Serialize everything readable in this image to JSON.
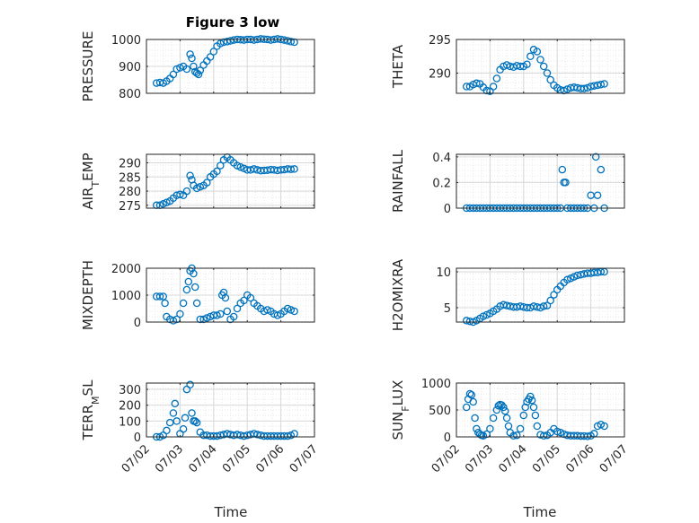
{
  "figure": {
    "title": "Figure 3 low",
    "xlabel": "Time"
  },
  "colors": {
    "marker": "#0072BD",
    "axis": "#262626",
    "grid": "#d9d9d9",
    "minorgrid": "#e8e8e8"
  },
  "chart_data": [
    {
      "type": "scatter",
      "ylabel": "PRESSURE",
      "xlim": [
        2.0,
        7.0
      ],
      "ylim": [
        800,
        1000
      ],
      "yticks": [
        800,
        900,
        1000
      ],
      "yticklabels": [
        "800",
        "900",
        "1000"
      ],
      "x": [
        2.3,
        2.4,
        2.5,
        2.6,
        2.7,
        2.8,
        2.9,
        3.0,
        3.1,
        3.2,
        3.3,
        3.35,
        3.4,
        3.45,
        3.5,
        3.55,
        3.6,
        3.7,
        3.8,
        3.9,
        4.0,
        4.1,
        4.2,
        4.3,
        4.4,
        4.5,
        4.6,
        4.7,
        4.8,
        4.9,
        5.0,
        5.1,
        5.2,
        5.3,
        5.4,
        5.5,
        5.6,
        5.7,
        5.8,
        5.9,
        6.0,
        6.1,
        6.2,
        6.3,
        6.4
      ],
      "y": [
        838,
        840,
        838,
        845,
        855,
        870,
        890,
        895,
        900,
        890,
        945,
        930,
        900,
        880,
        875,
        870,
        885,
        905,
        920,
        935,
        955,
        975,
        985,
        990,
        992,
        995,
        998,
        1000,
        999,
        998,
        1000,
        1000,
        998,
        1000,
        1002,
        1001,
        1000,
        998,
        1000,
        1002,
        1000,
        998,
        995,
        992,
        990
      ]
    },
    {
      "type": "scatter",
      "ylabel": "THETA",
      "xlim": [
        2.0,
        7.0
      ],
      "ylim": [
        287,
        295
      ],
      "yticks": [
        290,
        295
      ],
      "yticklabels": [
        "290",
        "295"
      ],
      "x": [
        2.3,
        2.4,
        2.5,
        2.6,
        2.7,
        2.8,
        2.9,
        3.0,
        3.1,
        3.2,
        3.3,
        3.4,
        3.5,
        3.6,
        3.7,
        3.8,
        3.9,
        4.0,
        4.1,
        4.2,
        4.3,
        4.4,
        4.5,
        4.6,
        4.7,
        4.8,
        4.9,
        5.0,
        5.1,
        5.2,
        5.3,
        5.4,
        5.5,
        5.6,
        5.7,
        5.8,
        5.9,
        6.0,
        6.1,
        6.2,
        6.3,
        6.4
      ],
      "y": [
        288,
        288,
        288.3,
        288.5,
        288.4,
        287.9,
        287.4,
        287.3,
        288,
        289.2,
        290.5,
        291,
        291.2,
        291,
        290.9,
        291.1,
        291,
        291,
        291.3,
        292.5,
        293.5,
        293.2,
        292,
        291,
        290,
        289,
        288.2,
        287.8,
        287.5,
        287.4,
        287.6,
        287.8,
        287.9,
        287.8,
        287.7,
        287.7,
        287.8,
        288,
        288.1,
        288.2,
        288.3,
        288.4
      ]
    },
    {
      "type": "scatter",
      "ylabel": "AIR_TEMP",
      "xlim": [
        2.0,
        7.0
      ],
      "ylim": [
        274,
        293
      ],
      "yticks": [
        275,
        280,
        285,
        290
      ],
      "yticklabels": [
        "275",
        "280",
        "285",
        "290"
      ],
      "x": [
        2.3,
        2.4,
        2.5,
        2.6,
        2.7,
        2.8,
        2.9,
        3.0,
        3.1,
        3.2,
        3.3,
        3.35,
        3.4,
        3.5,
        3.6,
        3.7,
        3.8,
        3.9,
        4.0,
        4.1,
        4.2,
        4.3,
        4.4,
        4.5,
        4.6,
        4.7,
        4.8,
        4.9,
        5.0,
        5.1,
        5.2,
        5.3,
        5.4,
        5.5,
        5.6,
        5.7,
        5.8,
        5.9,
        6.0,
        6.1,
        6.2,
        6.3,
        6.4
      ],
      "y": [
        275,
        275,
        275.5,
        276,
        276.5,
        277.5,
        278.5,
        278.8,
        278.5,
        280,
        285.5,
        284,
        282,
        281,
        281.5,
        282,
        283,
        285,
        286,
        287,
        289,
        291,
        292,
        291,
        290,
        289,
        288.5,
        288,
        287.5,
        287.5,
        287.8,
        287.5,
        287.2,
        287.3,
        287.4,
        287.6,
        287.5,
        287.3,
        287.5,
        287.6,
        287.8,
        287.7,
        287.8
      ]
    },
    {
      "type": "scatter",
      "ylabel": "RAINFALL",
      "xlim": [
        2.0,
        7.0
      ],
      "ylim": [
        0,
        0.42
      ],
      "yticks": [
        0,
        0.2,
        0.4
      ],
      "yticklabels": [
        "0",
        "0.2",
        "0.4"
      ],
      "x": [
        2.3,
        2.4,
        2.5,
        2.6,
        2.7,
        2.8,
        2.9,
        3.0,
        3.1,
        3.2,
        3.3,
        3.4,
        3.5,
        3.6,
        3.7,
        3.8,
        3.9,
        4.0,
        4.1,
        4.2,
        4.3,
        4.4,
        4.5,
        4.6,
        4.7,
        4.8,
        4.9,
        5.0,
        5.1,
        5.15,
        5.2,
        5.25,
        5.3,
        5.4,
        5.5,
        5.6,
        5.7,
        5.8,
        5.9,
        6.0,
        6.1,
        6.15,
        6.2,
        6.3,
        6.4
      ],
      "y": [
        0,
        0,
        0,
        0,
        0,
        0,
        0,
        0,
        0,
        0,
        0,
        0,
        0,
        0,
        0,
        0,
        0,
        0,
        0,
        0,
        0,
        0,
        0,
        0,
        0,
        0,
        0,
        0,
        0,
        0.3,
        0.2,
        0.2,
        0,
        0,
        0,
        0,
        0,
        0,
        0,
        0.1,
        0,
        0.4,
        0.1,
        0.3,
        0
      ]
    },
    {
      "type": "scatter",
      "ylabel": "MIXDEPTH",
      "xlim": [
        2.0,
        7.0
      ],
      "ylim": [
        0,
        2000
      ],
      "yticks": [
        0,
        1000,
        2000
      ],
      "yticklabels": [
        "0",
        "1000",
        "2000"
      ],
      "x": [
        2.3,
        2.4,
        2.5,
        2.55,
        2.6,
        2.7,
        2.8,
        2.9,
        3.0,
        3.1,
        3.2,
        3.25,
        3.3,
        3.35,
        3.4,
        3.45,
        3.5,
        3.6,
        3.7,
        3.8,
        3.9,
        4.0,
        4.1,
        4.2,
        4.25,
        4.3,
        4.35,
        4.4,
        4.5,
        4.6,
        4.7,
        4.8,
        4.9,
        5.0,
        5.1,
        5.2,
        5.3,
        5.4,
        5.5,
        5.6,
        5.7,
        5.8,
        5.9,
        6.0,
        6.1,
        6.2,
        6.3,
        6.4
      ],
      "y": [
        950,
        950,
        950,
        700,
        200,
        100,
        50,
        100,
        300,
        700,
        1200,
        1500,
        1900,
        2000,
        1800,
        1300,
        700,
        100,
        100,
        150,
        200,
        250,
        250,
        300,
        1000,
        1100,
        900,
        400,
        100,
        200,
        500,
        700,
        800,
        1000,
        900,
        700,
        600,
        500,
        400,
        450,
        400,
        300,
        250,
        300,
        400,
        500,
        450,
        400
      ]
    },
    {
      "type": "scatter",
      "ylabel": "H2OMIXRA",
      "xlim": [
        2.0,
        7.0
      ],
      "ylim": [
        3,
        10.5
      ],
      "yticks": [
        5,
        10
      ],
      "yticklabels": [
        "5",
        "10"
      ],
      "x": [
        2.3,
        2.4,
        2.5,
        2.6,
        2.7,
        2.8,
        2.9,
        3.0,
        3.1,
        3.2,
        3.3,
        3.4,
        3.5,
        3.6,
        3.7,
        3.8,
        3.9,
        4.0,
        4.1,
        4.2,
        4.3,
        4.4,
        4.5,
        4.6,
        4.7,
        4.8,
        4.9,
        5.0,
        5.1,
        5.2,
        5.3,
        5.4,
        5.5,
        5.6,
        5.7,
        5.8,
        5.9,
        6.0,
        6.1,
        6.2,
        6.3,
        6.4
      ],
      "y": [
        3.2,
        3.1,
        3.0,
        3.2,
        3.5,
        3.8,
        4.0,
        4.2,
        4.5,
        4.8,
        5.2,
        5.4,
        5.3,
        5.2,
        5.1,
        5.1,
        5.2,
        5.1,
        5.0,
        5.0,
        5.2,
        5.1,
        5.0,
        5.2,
        5.3,
        6.0,
        6.8,
        7.5,
        8.0,
        8.5,
        8.9,
        9.1,
        9.3,
        9.5,
        9.6,
        9.7,
        9.8,
        9.8,
        9.9,
        9.9,
        10.0,
        10.0
      ]
    },
    {
      "type": "scatter",
      "ylabel": "TERR_MSL",
      "xlim": [
        2.0,
        7.0
      ],
      "ylim": [
        0,
        340
      ],
      "yticks": [
        0,
        100,
        200,
        300
      ],
      "yticklabels": [
        "0",
        "100",
        "200",
        "300"
      ],
      "x": [
        2.3,
        2.4,
        2.5,
        2.6,
        2.7,
        2.8,
        2.85,
        2.9,
        3.0,
        3.1,
        3.15,
        3.2,
        3.3,
        3.35,
        3.4,
        3.45,
        3.5,
        3.6,
        3.7,
        3.8,
        3.9,
        4.0,
        4.1,
        4.2,
        4.3,
        4.4,
        4.5,
        4.6,
        4.7,
        4.8,
        4.9,
        5.0,
        5.1,
        5.2,
        5.3,
        5.4,
        5.5,
        5.6,
        5.7,
        5.8,
        5.9,
        6.0,
        6.1,
        6.2,
        6.3,
        6.4
      ],
      "y": [
        0,
        0,
        10,
        40,
        90,
        150,
        210,
        100,
        20,
        50,
        120,
        300,
        330,
        150,
        100,
        100,
        90,
        30,
        10,
        10,
        5,
        5,
        5,
        10,
        15,
        20,
        15,
        10,
        15,
        10,
        5,
        10,
        15,
        20,
        15,
        10,
        5,
        5,
        5,
        5,
        5,
        5,
        5,
        5,
        10,
        20
      ]
    },
    {
      "type": "scatter",
      "ylabel": "SUN_FLUX",
      "xlim": [
        2.0,
        7.0
      ],
      "ylim": [
        0,
        1000
      ],
      "yticks": [
        0,
        500,
        1000
      ],
      "yticklabels": [
        "0",
        "500",
        "1000"
      ],
      "x": [
        2.3,
        2.35,
        2.4,
        2.45,
        2.5,
        2.55,
        2.6,
        2.65,
        2.7,
        2.75,
        2.8,
        2.9,
        3.0,
        3.1,
        3.2,
        3.25,
        3.3,
        3.35,
        3.4,
        3.45,
        3.5,
        3.55,
        3.6,
        3.7,
        3.8,
        3.9,
        4.0,
        4.05,
        4.1,
        4.15,
        4.2,
        4.25,
        4.3,
        4.35,
        4.4,
        4.5,
        4.6,
        4.7,
        4.8,
        4.9,
        5.0,
        5.1,
        5.2,
        5.3,
        5.4,
        5.5,
        5.6,
        5.7,
        5.8,
        5.9,
        6.0,
        6.1,
        6.2,
        6.3,
        6.4
      ],
      "y": [
        550,
        700,
        800,
        780,
        650,
        350,
        150,
        80,
        50,
        30,
        20,
        50,
        150,
        350,
        500,
        580,
        600,
        590,
        550,
        480,
        350,
        200,
        80,
        20,
        30,
        150,
        400,
        550,
        650,
        700,
        750,
        680,
        550,
        400,
        200,
        40,
        20,
        30,
        80,
        150,
        100,
        80,
        50,
        30,
        20,
        20,
        20,
        15,
        15,
        10,
        20,
        60,
        200,
        230,
        200
      ]
    }
  ]
}
